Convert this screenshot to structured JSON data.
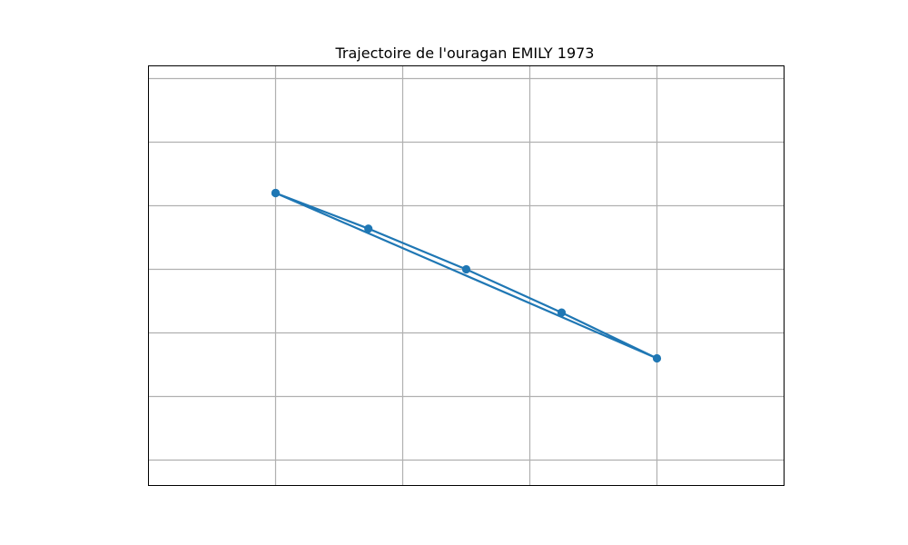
{
  "chart_data": {
    "type": "line",
    "title": "Trajectoire de l'ouragan EMILY 1973",
    "xlabel": "",
    "ylabel": "",
    "xlim": [
      -2,
      3
    ],
    "ylim": [
      -1.9,
      1.4
    ],
    "grid": true,
    "x_gridlines": [
      -1,
      0,
      1,
      2
    ],
    "y_gridlines": [
      -1.7,
      -1.2,
      -0.7,
      -0.2,
      0.3,
      0.8,
      1.3
    ],
    "series": [
      {
        "color": "#1f77b4",
        "marker": "circle",
        "points": [
          {
            "x": -1.0,
            "y": 0.4
          },
          {
            "x": -0.27,
            "y": 0.12
          },
          {
            "x": 0.5,
            "y": -0.2
          },
          {
            "x": 1.25,
            "y": -0.54
          },
          {
            "x": 2.0,
            "y": -0.9
          },
          {
            "x": -1.0,
            "y": 0.4
          }
        ]
      }
    ]
  }
}
